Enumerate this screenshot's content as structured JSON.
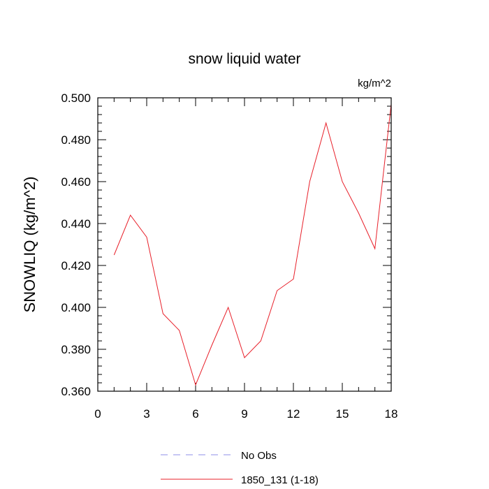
{
  "chart_data": {
    "type": "line",
    "title": "snow liquid water",
    "units_label": "kg/m^2",
    "ylabel": "SNOWLIQ  (kg/m^2)",
    "xlabel": "",
    "xlim": [
      0,
      18
    ],
    "ylim": [
      0.36,
      0.5
    ],
    "x_ticks": [
      0,
      3,
      6,
      9,
      12,
      15,
      18
    ],
    "x_tick_labels": [
      "0",
      "3",
      "6",
      "9",
      "12",
      "15",
      "18"
    ],
    "y_ticks": [
      0.36,
      0.38,
      0.4,
      0.42,
      0.44,
      0.46,
      0.48,
      0.5
    ],
    "y_tick_labels": [
      "0.360",
      "0.380",
      "0.400",
      "0.420",
      "0.440",
      "0.460",
      "0.480",
      "0.500"
    ],
    "grid": false,
    "legend_position": "bottom-center",
    "series": [
      {
        "name": "1850_131 (1-18)",
        "color": "#e8202a",
        "x": [
          1,
          2,
          3,
          4,
          5,
          6,
          7,
          8,
          9,
          10,
          11,
          12,
          13,
          14,
          15,
          16,
          17,
          18
        ],
        "values": [
          0.425,
          0.444,
          0.4335,
          0.397,
          0.389,
          0.363,
          0.382,
          0.4,
          0.376,
          0.384,
          0.408,
          0.4135,
          0.46,
          0.488,
          0.46,
          0.445,
          0.428,
          0.497
        ]
      }
    ],
    "legend": [
      {
        "label": "No Obs",
        "color": "#8f8fe8",
        "dashed": true
      },
      {
        "label": "1850_131 (1-18)",
        "color": "#e8202a",
        "dashed": false
      }
    ]
  }
}
